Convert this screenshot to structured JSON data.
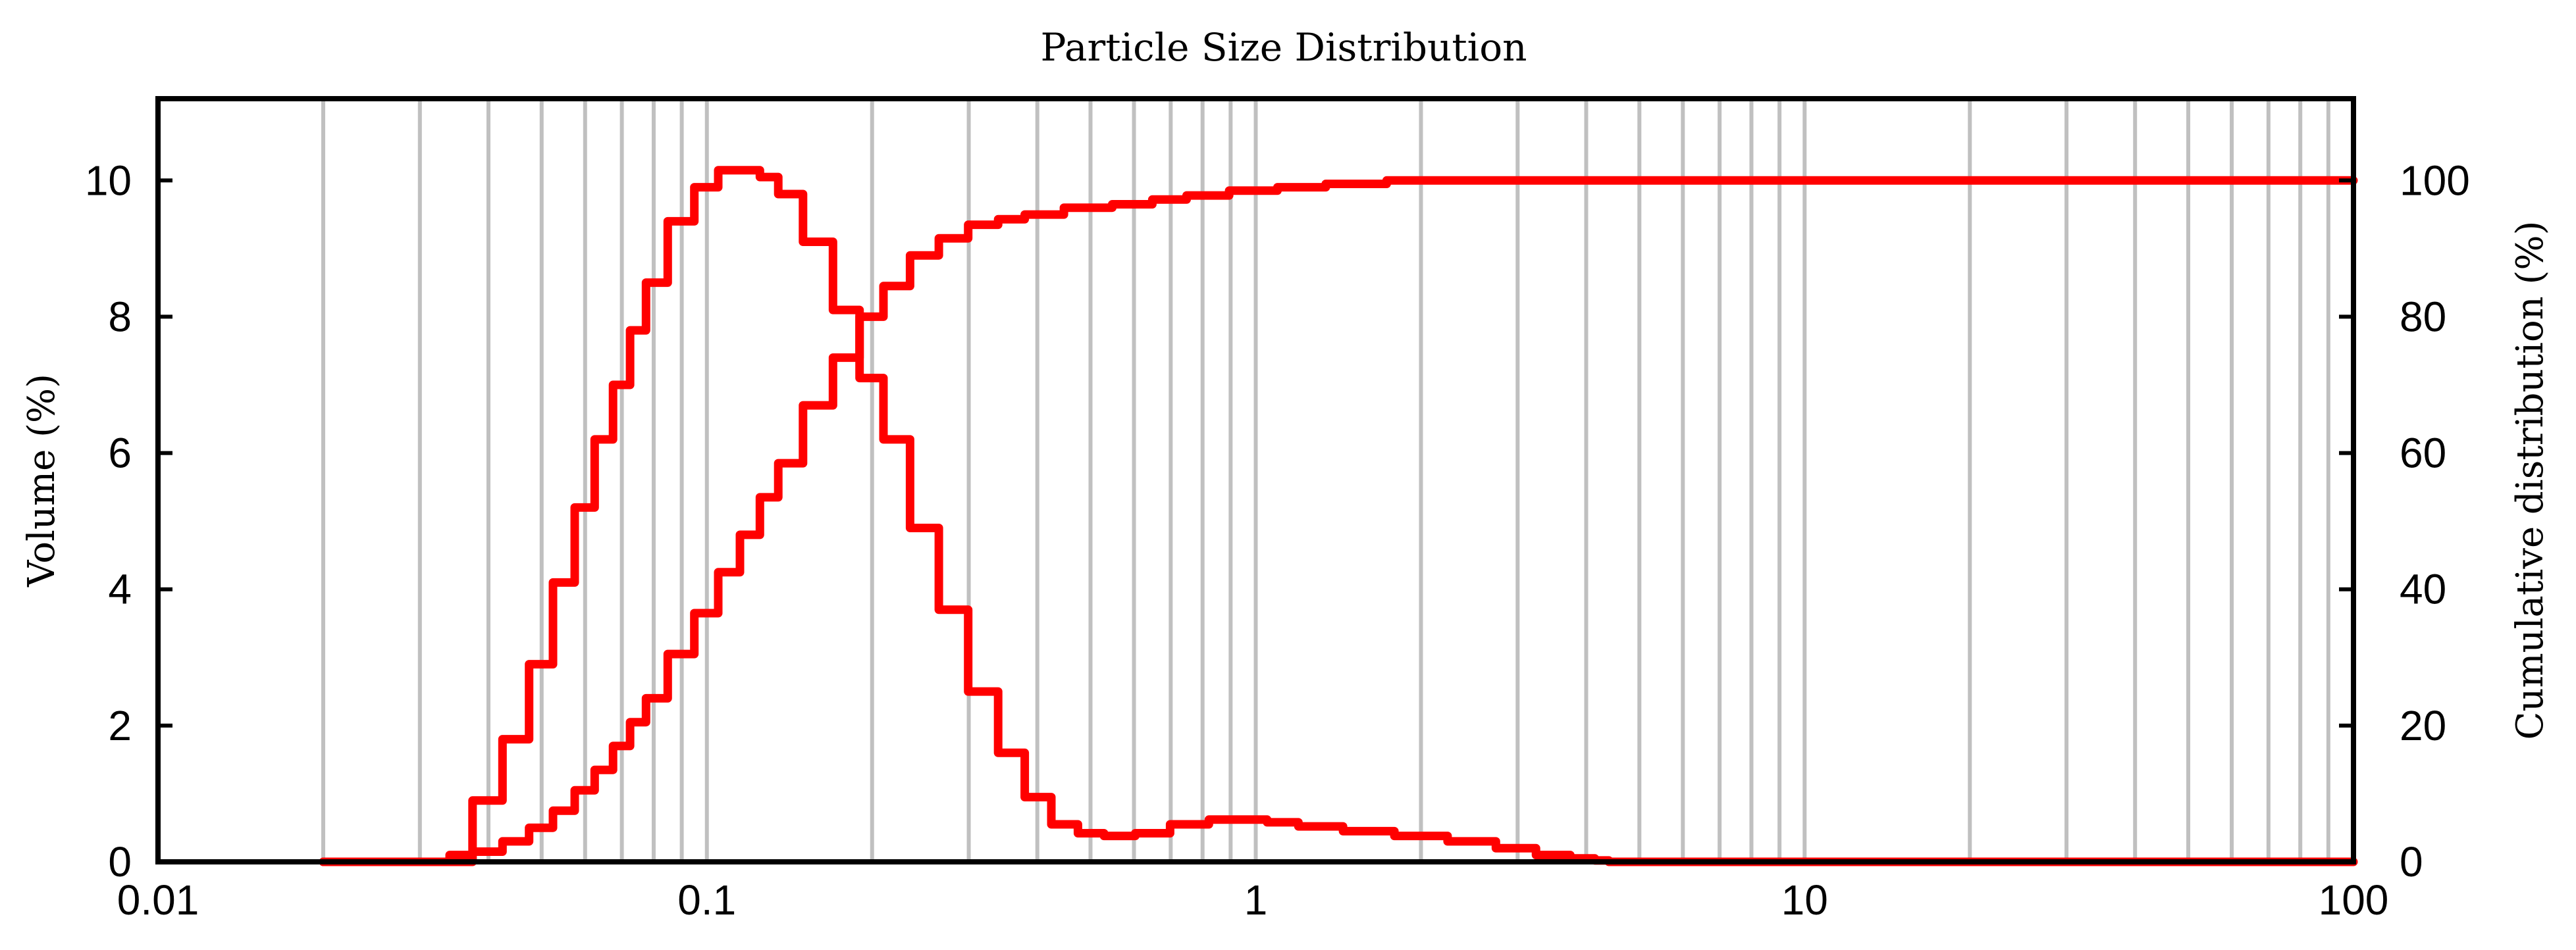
{
  "chart_data": {
    "type": "line",
    "title": "Particle Size Distribution",
    "xlabel": "",
    "ylabel": "Volume (%)",
    "y2label": "Cumulative distribution (%)",
    "x_scale": "log",
    "xlim": [
      0.01,
      100
    ],
    "ylim": [
      0,
      11.2
    ],
    "y2lim": [
      0,
      112
    ],
    "x_ticks": [
      0.01,
      0.1,
      1,
      10,
      100
    ],
    "x_tick_labels": [
      "0.01",
      "0.1",
      "1",
      "10",
      "100"
    ],
    "y_ticks": [
      0,
      2,
      4,
      6,
      8,
      10
    ],
    "y_tick_labels": [
      "0",
      "2",
      "4",
      "6",
      "8",
      "10"
    ],
    "y2_ticks": [
      0,
      20,
      40,
      60,
      80,
      100
    ],
    "y2_tick_labels": [
      "0",
      "20",
      "40",
      "60",
      "80",
      "100"
    ],
    "grid": true,
    "series": [
      {
        "axis": "left",
        "color": "#ff0000",
        "x": [
          0.02,
          0.033,
          0.035,
          0.04,
          0.045,
          0.05,
          0.055,
          0.06,
          0.065,
          0.07,
          0.075,
          0.08,
          0.09,
          0.1,
          0.11,
          0.12,
          0.13,
          0.14,
          0.16,
          0.18,
          0.2,
          0.22,
          0.25,
          0.28,
          0.32,
          0.36,
          0.4,
          0.45,
          0.5,
          0.56,
          0.65,
          0.75,
          0.9,
          1.0,
          1.1,
          1.3,
          1.6,
          2.0,
          2.5,
          3.0,
          3.5,
          4.0,
          4.3,
          4.5,
          10,
          100
        ],
        "values": [
          0,
          0,
          0.1,
          0.9,
          1.8,
          2.9,
          4.1,
          5.2,
          6.2,
          7.0,
          7.8,
          8.5,
          9.4,
          9.9,
          10.15,
          10.15,
          10.05,
          9.8,
          9.1,
          8.1,
          7.1,
          6.2,
          4.9,
          3.7,
          2.5,
          1.6,
          0.95,
          0.55,
          0.42,
          0.38,
          0.42,
          0.55,
          0.62,
          0.62,
          0.58,
          0.52,
          0.45,
          0.38,
          0.3,
          0.2,
          0.1,
          0.05,
          0.02,
          0,
          0,
          0
        ]
      },
      {
        "axis": "right",
        "color": "#ff0000",
        "x": [
          0.02,
          0.035,
          0.04,
          0.045,
          0.05,
          0.055,
          0.06,
          0.065,
          0.07,
          0.075,
          0.08,
          0.09,
          0.1,
          0.11,
          0.12,
          0.13,
          0.14,
          0.16,
          0.18,
          0.2,
          0.22,
          0.25,
          0.28,
          0.32,
          0.36,
          0.4,
          0.5,
          0.6,
          0.7,
          0.8,
          1.0,
          1.2,
          1.5,
          2.0,
          2.5,
          3.0,
          5.0,
          10,
          100
        ],
        "values": [
          0,
          0,
          1.5,
          3.0,
          5.0,
          7.5,
          10.5,
          13.5,
          17.0,
          20.5,
          24.0,
          30.5,
          36.5,
          42.5,
          48.0,
          53.5,
          58.5,
          67.0,
          74.0,
          80.0,
          84.5,
          89.0,
          91.5,
          93.5,
          94.3,
          95.0,
          96.0,
          96.5,
          97.2,
          97.8,
          98.5,
          99.0,
          99.5,
          100.0,
          100.0,
          100.0,
          100.0,
          100.0,
          100.0
        ]
      }
    ]
  }
}
